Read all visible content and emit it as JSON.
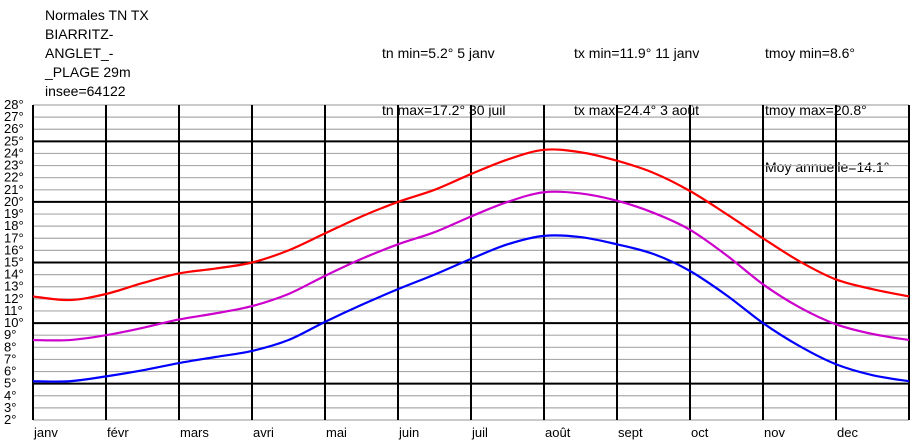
{
  "header": {
    "station_lines": [
      "Normales TN TX",
      "BIARRITZ-",
      "ANGLET_-",
      "_PLAGE 29m",
      "insee=64122"
    ],
    "tn": [
      "tn min=5.2° 5 janv",
      "tn max=17.2° 30 juil"
    ],
    "tx": [
      "tx min=11.9° 11 janv",
      "tx max=24.4° 3 août"
    ],
    "tmoy": [
      "tmoy min=8.6°",
      "tmoy max=20.8°",
      "Moy annuelle=14.1°"
    ]
  },
  "chart_data": {
    "type": "line",
    "title": "",
    "xlabel": "",
    "ylabel": "",
    "ylim": [
      2,
      28
    ],
    "y_ticks": [
      "2°",
      "3°",
      "4°",
      "5°",
      "6°",
      "7°",
      "8°",
      "9°",
      "10°",
      "11°",
      "12°",
      "13°",
      "14°",
      "15°",
      "16°",
      "17°",
      "18°",
      "19°",
      "20°",
      "21°",
      "22°",
      "23°",
      "24°",
      "25°",
      "26°",
      "27°",
      "28°"
    ],
    "major_y": [
      5,
      10,
      15,
      20,
      25
    ],
    "months": [
      "janv",
      "févr",
      "mars",
      "avri",
      "mai",
      "juin",
      "juil",
      "août",
      "sept",
      "oct",
      "nov",
      "dec"
    ],
    "colors": {
      "tx": "#ff0000",
      "tmoy": "#cc00cc",
      "tn": "#0000ff",
      "grid_minor": "#aaaaaa",
      "grid_major": "#000000"
    },
    "x": [
      0,
      0.5,
      1,
      1.5,
      2,
      2.5,
      3,
      3.5,
      4,
      4.5,
      5,
      5.5,
      6,
      6.5,
      7,
      7.5,
      8,
      8.5,
      9,
      9.5,
      10,
      10.5,
      11,
      11.5,
      12
    ],
    "series": [
      {
        "key": "tx",
        "values": [
          12.2,
          11.9,
          12.4,
          13.3,
          14.1,
          14.5,
          15.0,
          16.0,
          17.4,
          18.8,
          20.0,
          21.0,
          22.3,
          23.5,
          24.3,
          24.1,
          23.4,
          22.4,
          20.9,
          19.0,
          17.0,
          15.1,
          13.6,
          12.8,
          12.2
        ]
      },
      {
        "key": "tmoy",
        "values": [
          8.6,
          8.6,
          9.0,
          9.6,
          10.3,
          10.8,
          11.4,
          12.4,
          13.9,
          15.3,
          16.5,
          17.5,
          18.8,
          20.0,
          20.8,
          20.7,
          20.1,
          19.1,
          17.7,
          15.6,
          13.2,
          11.3,
          9.9,
          9.1,
          8.6
        ]
      },
      {
        "key": "tn",
        "values": [
          5.2,
          5.2,
          5.6,
          6.1,
          6.7,
          7.2,
          7.7,
          8.6,
          10.1,
          11.5,
          12.8,
          14.0,
          15.3,
          16.5,
          17.2,
          17.1,
          16.5,
          15.7,
          14.3,
          12.3,
          10.0,
          8.1,
          6.6,
          5.7,
          5.2
        ]
      }
    ]
  }
}
